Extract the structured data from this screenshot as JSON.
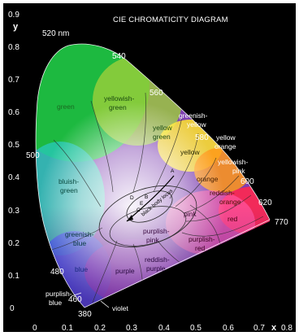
{
  "title": "CIE CHROMATICITY DIAGRAM",
  "axes": {
    "x_letter": "x",
    "y_letter": "y",
    "x_ticks": [
      "0",
      "0.1",
      "0.2",
      "0.3",
      "0.4",
      "0.5",
      "0.6",
      "0.7",
      "0.8"
    ],
    "y_ticks": [
      "0",
      "0.1",
      "0.2",
      "0.3",
      "0.4",
      "0.5",
      "0.6",
      "0.7",
      "0.8",
      "0.9"
    ]
  },
  "wavelengths": {
    "w520": "520 nm",
    "w540": "540",
    "w560": "560",
    "w580": "580",
    "w600": "600",
    "w620": "620",
    "w770": "770",
    "w500": "500",
    "w480": "480",
    "w460": "460",
    "w380": "380"
  },
  "regions": {
    "green": "green",
    "yellowish_green": [
      "yellowish-",
      "green"
    ],
    "yellow_green": [
      "yellow",
      "green"
    ],
    "greenish_yellow": [
      "greenish-",
      "yellow"
    ],
    "yellow": "yellow",
    "yellow_orange": [
      "yellow",
      "orange"
    ],
    "yellowish_pink": [
      "yellowish-",
      "pink"
    ],
    "orange": "orange",
    "reddish_orange": [
      "reddish-",
      "orange"
    ],
    "red": "red",
    "bluish_green": [
      "bluish-",
      "green"
    ],
    "greenish_blue": [
      "greenish-",
      "blue"
    ],
    "blue": "blue",
    "pink": "pink",
    "purplish_pink": [
      "purplish-",
      "pink"
    ],
    "purplish_red": [
      "purplish-",
      "red"
    ],
    "purple": "purple",
    "reddish_purple": [
      "reddish-",
      "purple"
    ],
    "purplish_blue": [
      "purplish-",
      "blue"
    ],
    "violet": "violet"
  },
  "blackbody": {
    "locus_label": "black body locus",
    "points": [
      "A",
      "B",
      "C",
      "D",
      "E"
    ]
  }
}
